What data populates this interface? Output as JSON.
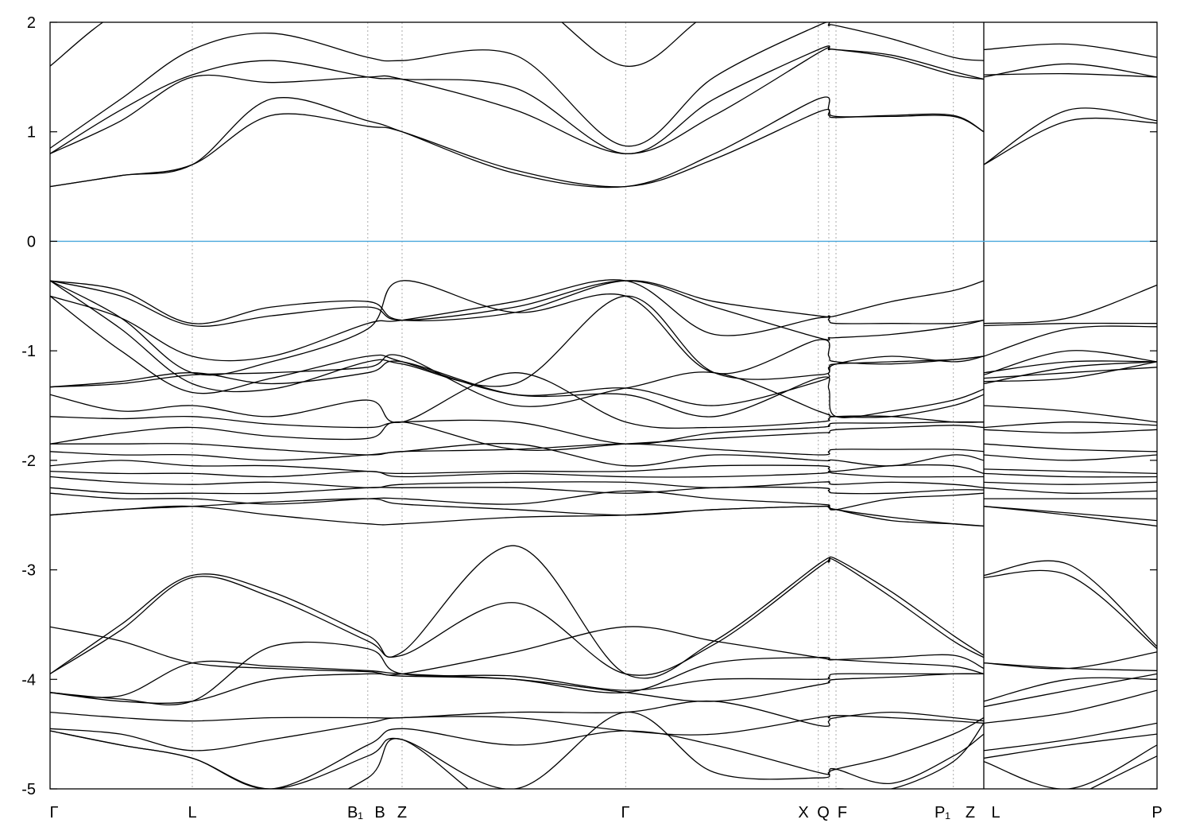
{
  "chart_data": {
    "type": "line",
    "title": "",
    "xlabel": "",
    "ylabel": "",
    "ylim": [
      -5,
      2
    ],
    "xlim": [
      0,
      1
    ],
    "yticks": [
      -5,
      -4,
      -3,
      -2,
      -1,
      0,
      1,
      2
    ],
    "ytick_labels": [
      "-5",
      "-4",
      "-3",
      "-2",
      "-1",
      "0",
      "1",
      "2"
    ],
    "xticks": [
      {
        "k": 0.0,
        "label": "Γ"
      },
      {
        "k": 0.1285,
        "label": "L"
      },
      {
        "k": 0.287,
        "label": "B₁"
      },
      {
        "k": 0.318,
        "label": "B"
      },
      {
        "k": 0.52,
        "label": "Z"
      },
      {
        "k": 0.694,
        "label": "Γ"
      },
      {
        "k": 0.7035,
        "label": "X"
      },
      {
        "k": 0.71,
        "label": "Q"
      },
      {
        "k": 0.816,
        "label": "F"
      },
      {
        "k": 0.8435,
        "label": "P₁"
      },
      {
        "k": 0.8435,
        "label": "Z"
      },
      {
        "k": 0.8435,
        "label": "L"
      },
      {
        "k": 1.0,
        "label": "P"
      }
    ],
    "fermi_level": 0,
    "colors": {
      "bands": "#000000",
      "fermi": "#4aa8dc",
      "gridlines": "#aaaaaa"
    },
    "segment1_k": [
      0,
      0.064,
      0.1285,
      0.2,
      0.287,
      0.318,
      0.42,
      0.52,
      0.6,
      0.694,
      0.7035,
      0.71,
      0.76,
      0.816,
      0.8435
    ],
    "segment2_k": [
      0.8435,
      0.92,
      1.0
    ],
    "bands": [
      {
        "s1": [
          1.6,
          2.1,
          2.2,
          2.3,
          2.3,
          2.3,
          2.3,
          1.6,
          2.1,
          2.3,
          2.3,
          2.3,
          2.3,
          2.3,
          2.3
        ],
        "s2": [
          2.3,
          2.3,
          2.3
        ]
      },
      {
        "s1": [
          0.85,
          1.3,
          1.75,
          1.9,
          1.68,
          1.65,
          1.7,
          0.87,
          1.5,
          1.97,
          1.97,
          1.97,
          1.85,
          1.68,
          1.65
        ],
        "s2": [
          1.75,
          1.8,
          1.68
        ]
      },
      {
        "s1": [
          0.8,
          1.2,
          1.52,
          1.65,
          1.5,
          1.48,
          1.4,
          0.8,
          1.3,
          1.75,
          1.75,
          1.75,
          1.7,
          1.55,
          1.48
        ],
        "s2": [
          1.5,
          1.62,
          1.5
        ]
      },
      {
        "s1": [
          0.8,
          1.1,
          1.5,
          1.45,
          1.5,
          1.48,
          1.2,
          0.8,
          1.15,
          1.72,
          1.75,
          1.75,
          1.68,
          1.52,
          1.48
        ],
        "s2": [
          1.52,
          1.53,
          1.5
        ]
      },
      {
        "s1": [
          0.5,
          0.6,
          0.7,
          1.3,
          1.1,
          1.0,
          0.62,
          0.5,
          0.8,
          1.3,
          1.2,
          1.14,
          1.14,
          1.14,
          1.0
        ],
        "s2": [
          0.7,
          1.2,
          1.1
        ]
      },
      {
        "s1": [
          0.5,
          0.6,
          0.7,
          1.15,
          1.05,
          1.0,
          0.65,
          0.5,
          0.75,
          1.18,
          1.15,
          1.13,
          1.15,
          1.15,
          1.0
        ],
        "s2": [
          0.7,
          1.1,
          1.08
        ]
      },
      {
        "s1": [
          -0.36,
          -0.45,
          -0.75,
          -0.6,
          -0.55,
          -0.72,
          -0.65,
          -0.36,
          -0.55,
          -0.68,
          -0.68,
          -0.68,
          -0.55,
          -0.45,
          -0.36
        ],
        "s2": [
          -0.75,
          -0.7,
          -0.4
        ]
      },
      {
        "s1": [
          -0.36,
          -0.5,
          -0.77,
          -0.68,
          -0.6,
          -0.72,
          -0.6,
          -0.36,
          -0.6,
          -0.88,
          -0.88,
          -0.88,
          -0.85,
          -0.78,
          -0.72
        ],
        "s2": [
          -0.77,
          -0.75,
          -0.75
        ]
      },
      {
        "s1": [
          -0.5,
          -0.7,
          -1.05,
          -1.05,
          -0.75,
          -0.72,
          -0.55,
          -0.36,
          -0.85,
          -0.7,
          -0.72,
          -0.75,
          -0.75,
          -0.75,
          -0.72
        ],
        "s2": [
          -1.05,
          -0.8,
          -0.78
        ]
      },
      {
        "s1": [
          -0.36,
          -0.7,
          -1.2,
          -1.1,
          -0.8,
          -0.36,
          -0.65,
          -0.5,
          -1.2,
          -0.9,
          -1.05,
          -1.1,
          -1.12,
          -1.08,
          -1.05
        ],
        "s2": [
          -1.22,
          -1.0,
          -1.1
        ]
      },
      {
        "s1": [
          -0.36,
          -0.8,
          -1.3,
          -1.35,
          -1.1,
          -1.12,
          -1.3,
          -0.5,
          -1.2,
          -1.22,
          -1.15,
          -1.12,
          -1.1,
          -1.08,
          -1.05
        ],
        "s2": [
          -1.2,
          -1.1,
          -1.1
        ]
      },
      {
        "s1": [
          -0.5,
          -1.0,
          -1.38,
          -1.25,
          -1.05,
          -1.1,
          -1.4,
          -1.34,
          -1.5,
          -1.28,
          -1.2,
          -1.12,
          -1.05,
          -1.1,
          -1.05
        ],
        "s2": [
          -1.3,
          -1.15,
          -1.1
        ]
      },
      {
        "s1": [
          -1.33,
          -1.3,
          -1.22,
          -1.2,
          -1.15,
          -1.05,
          -1.5,
          -1.34,
          -1.2,
          -1.55,
          -1.58,
          -1.6,
          -1.6,
          -1.5,
          -1.4
        ],
        "s2": [
          -1.25,
          -1.2,
          -1.15
        ]
      },
      {
        "s1": [
          -1.33,
          -1.28,
          -1.2,
          -1.3,
          -1.2,
          -1.1,
          -1.4,
          -1.4,
          -1.6,
          -1.25,
          -1.35,
          -1.6,
          -1.55,
          -1.45,
          -1.35
        ],
        "s2": [
          -1.28,
          -1.25,
          -1.1
        ]
      },
      {
        "s1": [
          -1.4,
          -1.55,
          -1.5,
          -1.6,
          -1.45,
          -1.65,
          -1.2,
          -1.65,
          -1.7,
          -1.65,
          -1.62,
          -1.6,
          -1.6,
          -1.65,
          -1.65
        ],
        "s2": [
          -1.5,
          -1.55,
          -1.65
        ]
      },
      {
        "s1": [
          -1.6,
          -1.62,
          -1.6,
          -1.67,
          -1.7,
          -1.65,
          -1.65,
          -1.85,
          -1.75,
          -1.7,
          -1.68,
          -1.66,
          -1.66,
          -1.65,
          -1.65
        ],
        "s2": [
          -1.7,
          -1.65,
          -1.68
        ]
      },
      {
        "s1": [
          -1.85,
          -1.75,
          -1.7,
          -1.78,
          -1.8,
          -1.65,
          -1.9,
          -1.85,
          -1.8,
          -1.75,
          -1.75,
          -1.72,
          -1.7,
          -1.68,
          -1.7
        ],
        "s2": [
          -1.72,
          -1.75,
          -1.72
        ]
      },
      {
        "s1": [
          -1.85,
          -1.85,
          -1.85,
          -1.9,
          -1.95,
          -1.92,
          -1.9,
          -1.85,
          -1.9,
          -1.95,
          -1.92,
          -1.9,
          -1.9,
          -1.9,
          -1.92
        ],
        "s2": [
          -1.85,
          -1.9,
          -1.92
        ]
      },
      {
        "s1": [
          -1.92,
          -1.95,
          -1.95,
          -2.0,
          -1.95,
          -1.92,
          -1.85,
          -2.05,
          -1.95,
          -2.0,
          -2.0,
          -2.0,
          -2.05,
          -1.95,
          -2.0
        ],
        "s2": [
          -1.95,
          -2.0,
          -1.95
        ]
      },
      {
        "s1": [
          -2.05,
          -2.0,
          -2.05,
          -2.05,
          -2.1,
          -2.12,
          -2.1,
          -2.1,
          -2.05,
          -2.05,
          -2.08,
          -2.1,
          -2.05,
          -2.05,
          -2.12
        ],
        "s2": [
          -2.08,
          -2.1,
          -2.12
        ]
      },
      {
        "s1": [
          -2.1,
          -2.12,
          -2.12,
          -2.15,
          -2.1,
          -2.15,
          -2.12,
          -2.15,
          -2.15,
          -2.12,
          -2.1,
          -2.12,
          -2.15,
          -2.15,
          -2.15
        ],
        "s2": [
          -2.12,
          -2.15,
          -2.15
        ]
      },
      {
        "s1": [
          -2.15,
          -2.2,
          -2.22,
          -2.2,
          -2.25,
          -2.22,
          -2.2,
          -2.2,
          -2.25,
          -2.2,
          -2.2,
          -2.22,
          -2.2,
          -2.22,
          -2.25
        ],
        "s2": [
          -2.2,
          -2.22,
          -2.2
        ]
      },
      {
        "s1": [
          -2.25,
          -2.3,
          -2.3,
          -2.3,
          -2.25,
          -2.25,
          -2.25,
          -2.3,
          -2.25,
          -2.25,
          -2.28,
          -2.3,
          -2.3,
          -2.27,
          -2.27
        ],
        "s2": [
          -2.25,
          -2.3,
          -2.28
        ]
      },
      {
        "s1": [
          -2.3,
          -2.35,
          -2.35,
          -2.4,
          -2.35,
          -2.35,
          -2.4,
          -2.28,
          -2.35,
          -2.4,
          -2.42,
          -2.45,
          -2.35,
          -2.32,
          -2.3
        ],
        "s2": [
          -2.35,
          -2.35,
          -2.35
        ]
      },
      {
        "s1": [
          -2.5,
          -2.45,
          -2.42,
          -2.38,
          -2.35,
          -2.4,
          -2.45,
          -2.5,
          -2.45,
          -2.42,
          -2.43,
          -2.45,
          -2.52,
          -2.58,
          -2.6
        ],
        "s2": [
          -2.42,
          -2.48,
          -2.55
        ]
      },
      {
        "s1": [
          -2.5,
          -2.45,
          -2.42,
          -2.5,
          -2.58,
          -2.58,
          -2.52,
          -2.5,
          -2.45,
          -2.42,
          -2.43,
          -2.45,
          -2.55,
          -2.58,
          -2.6
        ],
        "s2": [
          -2.42,
          -2.5,
          -2.6
        ]
      },
      {
        "s1": [
          -3.95,
          -3.5,
          -3.05,
          -3.2,
          -3.6,
          -3.75,
          -2.78,
          -3.95,
          -3.65,
          -2.95,
          -2.92,
          -2.9,
          -3.2,
          -3.6,
          -3.78
        ],
        "s2": [
          -3.05,
          -2.95,
          -3.7
        ]
      },
      {
        "s1": [
          -3.95,
          -3.55,
          -3.07,
          -3.25,
          -3.65,
          -3.78,
          -3.3,
          -3.95,
          -3.68,
          -2.98,
          -2.93,
          -2.92,
          -3.25,
          -3.65,
          -3.8
        ],
        "s2": [
          -3.07,
          -3.05,
          -3.72
        ]
      },
      {
        "s1": [
          -3.52,
          -3.65,
          -3.85,
          -3.9,
          -3.93,
          -3.95,
          -3.75,
          -3.52,
          -3.65,
          -3.8,
          -3.82,
          -3.82,
          -3.8,
          -3.78,
          -3.9
        ],
        "s2": [
          -3.85,
          -3.9,
          -3.92
        ]
      },
      {
        "s1": [
          -4.12,
          -4.15,
          -3.85,
          -3.88,
          -3.92,
          -3.95,
          -4.0,
          -4.12,
          -3.85,
          -3.8,
          -3.82,
          -3.82,
          -3.85,
          -3.88,
          -3.95
        ],
        "s2": [
          -3.85,
          -3.9,
          -3.75
        ]
      },
      {
        "s1": [
          -4.12,
          -4.18,
          -4.2,
          -3.7,
          -3.72,
          -3.95,
          -3.97,
          -4.1,
          -4.0,
          -4.0,
          -3.98,
          -3.95,
          -3.95,
          -3.95,
          -3.95
        ],
        "s2": [
          -4.2,
          -4.0,
          -4.0
        ]
      },
      {
        "s1": [
          -4.12,
          -4.2,
          -4.2,
          -4.0,
          -3.95,
          -3.97,
          -4.0,
          -4.12,
          -4.2,
          -4.05,
          -4.02,
          -4.0,
          -3.98,
          -3.95,
          -3.95
        ],
        "s2": [
          -4.25,
          -4.1,
          -3.95
        ]
      },
      {
        "s1": [
          -4.3,
          -4.35,
          -4.38,
          -4.35,
          -4.35,
          -4.35,
          -4.3,
          -4.3,
          -4.2,
          -4.42,
          -4.38,
          -4.35,
          -4.3,
          -4.35,
          -4.38
        ],
        "s2": [
          -4.4,
          -4.3,
          -4.1
        ]
      },
      {
        "s1": [
          -4.45,
          -4.5,
          -4.65,
          -4.55,
          -4.4,
          -4.35,
          -4.35,
          -4.47,
          -4.5,
          -4.35,
          -4.35,
          -4.33,
          -4.35,
          -4.38,
          -4.4
        ],
        "s2": [
          -4.65,
          -4.55,
          -4.4
        ]
      },
      {
        "s1": [
          -4.47,
          -4.6,
          -4.72,
          -5.0,
          -4.6,
          -4.45,
          -4.6,
          -4.47,
          -4.6,
          -4.85,
          -4.85,
          -4.82,
          -4.7,
          -4.5,
          -4.35
        ],
        "s2": [
          -4.72,
          -4.6,
          -4.5
        ]
      },
      {
        "s1": [
          -4.47,
          -4.6,
          -4.72,
          -5.0,
          -4.7,
          -4.55,
          -5.0,
          -4.3,
          -4.85,
          -4.9,
          -4.85,
          -4.82,
          -4.95,
          -4.7,
          -4.5
        ],
        "s2": [
          -4.75,
          -5.0,
          -4.6
        ]
      },
      {
        "s1": [
          -5.5,
          -5.5,
          -5.4,
          -5.3,
          -4.9,
          -4.55,
          -5.3,
          -5.5,
          -5.3,
          -5.1,
          -5.05,
          -5.0,
          -5.0,
          -4.75,
          -4.4
        ],
        "s2": [
          -5.5,
          -5.1,
          -4.7
        ]
      }
    ]
  }
}
